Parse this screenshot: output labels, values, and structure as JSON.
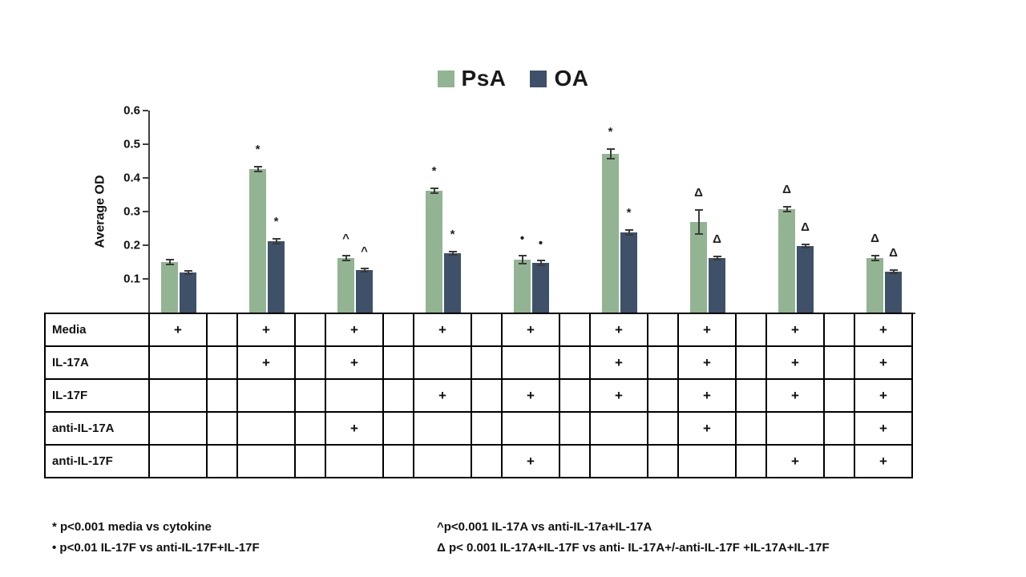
{
  "legend": {
    "items": [
      {
        "label": "PsA",
        "color": "#92b492"
      },
      {
        "label": "OA",
        "color": "#3e5169"
      }
    ]
  },
  "chart_data": {
    "type": "bar",
    "title": "",
    "ylabel": "Average OD",
    "xlabel": "",
    "ylim": [
      0,
      0.6
    ],
    "yticks": [
      "0.1",
      "0.2",
      "0.3",
      "0.4",
      "0.5",
      "0.6"
    ],
    "grid": false,
    "legend_position": "top",
    "groups": [
      1,
      2,
      3,
      4,
      5,
      6,
      7,
      8,
      9
    ],
    "series": [
      {
        "name": "PsA",
        "color": "#92b492",
        "values": [
          0.15,
          0.425,
          0.162,
          0.362,
          0.158,
          0.472,
          0.27,
          0.306,
          0.162
        ],
        "errors": [
          0.006,
          0.008,
          0.006,
          0.008,
          0.012,
          0.015,
          0.035,
          0.006,
          0.006
        ],
        "annotations": [
          "",
          "*",
          "^",
          "*",
          "•",
          "*",
          "Δ",
          "Δ",
          "Δ"
        ]
      },
      {
        "name": "OA",
        "color": "#3e5169",
        "values": [
          0.12,
          0.213,
          0.127,
          0.176,
          0.147,
          0.239,
          0.163,
          0.198,
          0.121
        ],
        "errors": [
          0.004,
          0.006,
          0.004,
          0.005,
          0.007,
          0.006,
          0.005,
          0.005,
          0.004
        ],
        "annotations": [
          "",
          "*",
          "^",
          "*",
          "•",
          "*",
          "Δ",
          "Δ",
          "Δ"
        ]
      }
    ]
  },
  "condition_table": {
    "row_labels": [
      "Media",
      "IL-17A",
      "IL-17F",
      "anti-IL-17A",
      "anti-IL-17F"
    ],
    "matrix": [
      [
        "+",
        "+",
        "+",
        "+",
        "+",
        "+",
        "+",
        "+",
        "+"
      ],
      [
        "",
        "+",
        "+",
        "",
        "",
        "+",
        "+",
        "+",
        "+"
      ],
      [
        "",
        "",
        "",
        "+",
        "+",
        "+",
        "+",
        "+",
        "+"
      ],
      [
        "",
        "",
        "+",
        "",
        "",
        "",
        "+",
        "",
        "+"
      ],
      [
        "",
        "",
        "",
        "",
        "+",
        "",
        "",
        "+",
        "+"
      ]
    ]
  },
  "footnotes": {
    "left": [
      "* p<0.001 media vs cytokine",
      "• p<0.01 IL-17F vs anti-IL-17F+IL-17F"
    ],
    "right": [
      "^p<0.001 IL-17A vs anti-IL-17a+IL-17A",
      "Δ p< 0.001 IL-17A+IL-17F  vs anti- IL-17A+/-anti-IL-17F +IL-17A+IL-17F"
    ]
  }
}
